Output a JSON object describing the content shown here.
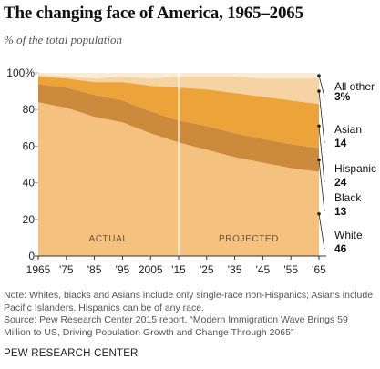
{
  "title": "The changing face of America, 1965–2065",
  "subtitle": "% of the total population",
  "chart_data": {
    "type": "area",
    "stacked": true,
    "x": [
      1965,
      1975,
      1985,
      1995,
      2005,
      2015,
      2025,
      2035,
      2045,
      2055,
      2065
    ],
    "x_tick_labels": [
      "1965",
      "'75",
      "'85",
      "'95",
      "2005",
      "'15",
      "'25",
      "'35",
      "'45",
      "'55",
      "'65"
    ],
    "y_tick_labels": [
      "0",
      "20",
      "40",
      "60",
      "80",
      "100%"
    ],
    "ylim": [
      0,
      100
    ],
    "projection_start": 2015,
    "series": [
      {
        "name": "White",
        "value_label": "46",
        "color": "#f4c27e",
        "values": [
          84,
          81,
          76,
          73,
          67,
          62,
          58,
          54,
          51,
          48,
          46
        ]
      },
      {
        "name": "Black",
        "value_label": "13",
        "color": "#cc8a3c",
        "values": [
          10,
          11,
          12,
          12,
          12,
          12,
          13,
          13,
          13,
          13,
          13
        ]
      },
      {
        "name": "Hispanic",
        "value_label": "24",
        "color": "#eca33a",
        "values": [
          4,
          5,
          7,
          10,
          14,
          18,
          20,
          22,
          23,
          24,
          24
        ]
      },
      {
        "name": "Asian",
        "value_label": "14",
        "color": "#f6d3a2",
        "values": [
          1,
          1,
          2,
          3,
          4,
          6,
          7,
          9,
          10,
          12,
          14
        ]
      },
      {
        "name": "All other",
        "value_label": "3%",
        "color": "#faebd4",
        "values": [
          1,
          2,
          3,
          2,
          3,
          2,
          2,
          2,
          3,
          3,
          3
        ]
      }
    ],
    "annotations": [
      "ACTUAL",
      "PROJECTED"
    ]
  },
  "note": "Note: Whites, blacks and Asians include only single-race non-Hispanics; Asians include Pacific Islanders. Hispanics can be of any race.",
  "source": "Source:  Pew Research Center 2015 report, “Modern Immigration Wave Brings 59 Million to US, Driving Population Growth and Change Through 2065”",
  "footer": "PEW RESEARCH CENTER"
}
